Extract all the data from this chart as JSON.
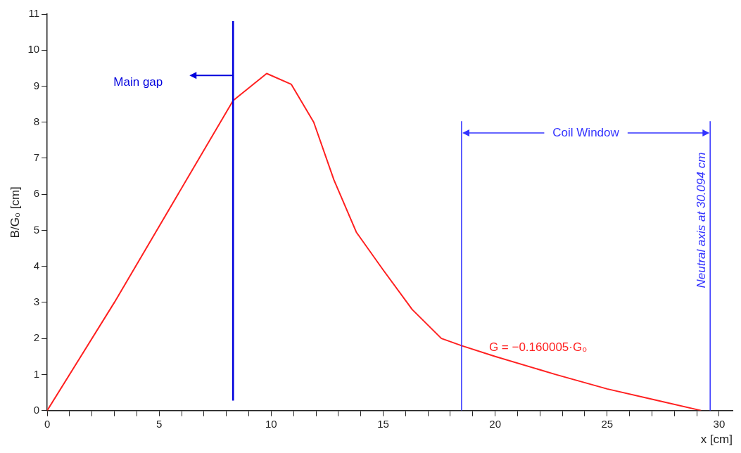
{
  "chart_data": {
    "type": "line",
    "xlabel": "x [cm]",
    "ylabel": "B/G₀ [cm]",
    "xlim": [
      0,
      30.6
    ],
    "ylim": [
      0,
      11
    ],
    "xticks": [
      0,
      {
        "value": 1,
        "label": null
      },
      {
        "value": 2,
        "label": null
      },
      {
        "value": 3,
        "label": null
      },
      {
        "value": 4,
        "label": null
      },
      5,
      {
        "value": 6,
        "label": null
      },
      {
        "value": 7,
        "label": null
      },
      {
        "value": 8,
        "label": null
      },
      {
        "value": 9,
        "label": null
      },
      10,
      {
        "value": 11,
        "label": null
      },
      {
        "value": 12,
        "label": null
      },
      {
        "value": 13,
        "label": null
      },
      {
        "value": 14,
        "label": null
      },
      15,
      {
        "value": 16,
        "label": null
      },
      {
        "value": 17,
        "label": null
      },
      {
        "value": 18,
        "label": null
      },
      {
        "value": 19,
        "label": null
      },
      20,
      {
        "value": 21,
        "label": null
      },
      {
        "value": 22,
        "label": null
      },
      {
        "value": 23,
        "label": null
      },
      {
        "value": 24,
        "label": null
      },
      25,
      {
        "value": 26,
        "label": null
      },
      {
        "value": 27,
        "label": null
      },
      {
        "value": 28,
        "label": null
      },
      {
        "value": 29,
        "label": null
      },
      30
    ],
    "yticks": [
      0,
      1,
      2,
      3,
      4,
      5,
      6,
      7,
      8,
      9,
      10,
      11
    ],
    "grid": false,
    "legend": false,
    "marker": "none",
    "line_style": "solid",
    "series": [
      {
        "name": "G = −0.160005·G₀",
        "color": "#ff2020",
        "x": [
          0,
          3,
          8.3,
          9.8,
          10.9,
          11.9,
          12.8,
          13.8,
          15,
          16.3,
          17.6,
          18.5,
          20,
          22.7,
          25,
          27.1,
          29.2
        ],
        "values": [
          0,
          3.0,
          8.6,
          9.35,
          9.05,
          8.0,
          6.4,
          4.95,
          3.9,
          2.8,
          2.0,
          1.8,
          1.5,
          1.0,
          0.6,
          0.3,
          0
        ]
      }
    ],
    "ref_lines": [
      {
        "axis": "x",
        "value": 8.3,
        "label": "Main gap",
        "color": "#0000dd"
      },
      {
        "axis": "x",
        "value": 18.5,
        "color": "#3333ff"
      },
      {
        "axis": "x",
        "value": 29.6,
        "label": "Neutral axis at 30.094 cm",
        "color": "#3333ff"
      }
    ],
    "annotations": [
      "Coil Window"
    ]
  }
}
